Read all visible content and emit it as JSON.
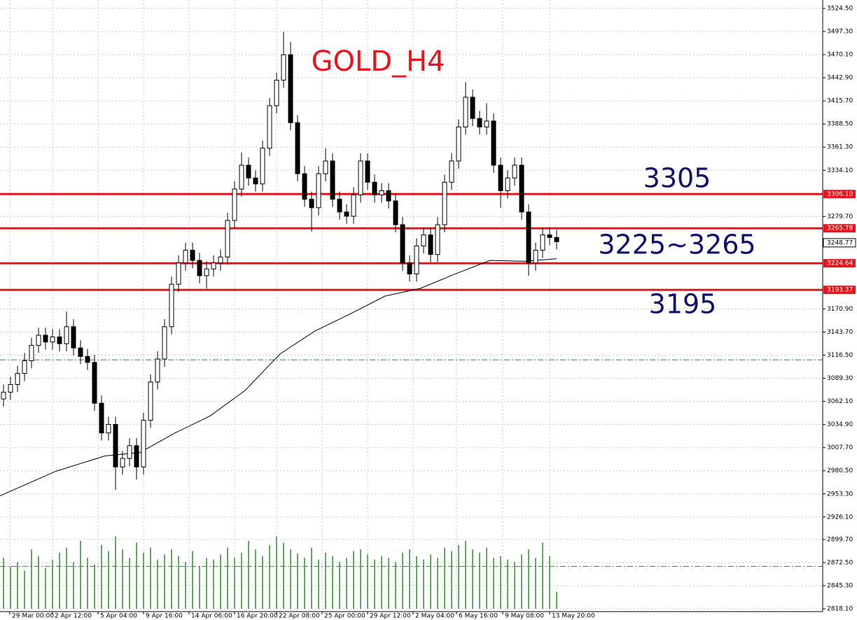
{
  "chart_data": {
    "type": "candlestick",
    "title": "GOLD_H4",
    "annotations": [
      "3305",
      "3225~3265",
      "3195"
    ],
    "open": [
      3065,
      3073,
      3082,
      3095,
      3110,
      3128,
      3140,
      3132,
      3138,
      3130,
      3150,
      3125,
      3115,
      3108,
      3060,
      3025,
      3035,
      2985,
      2995,
      3010,
      2985,
      3040,
      3085,
      3112,
      3150,
      3200,
      3225,
      3240,
      3228,
      3210,
      3218,
      3225,
      3232,
      3275,
      3312,
      3340,
      3325,
      3318,
      3360,
      3410,
      3440,
      3470,
      3390,
      3330,
      3300,
      3290,
      3330,
      3345,
      3300,
      3285,
      3280,
      3305,
      3345,
      3320,
      3305,
      3310,
      3298,
      3270,
      3225,
      3212,
      3245,
      3258,
      3235,
      3270,
      3320,
      3345,
      3385,
      3420,
      3395,
      3385,
      3392,
      3340,
      3310,
      3325,
      3340,
      3285,
      3225,
      3240,
      3258,
      3255
    ],
    "high": [
      3082,
      3091,
      3104,
      3119,
      3137,
      3149,
      3149,
      3147,
      3147,
      3168,
      3159,
      3134,
      3124,
      3117,
      3069,
      3044,
      3044,
      3004,
      3019,
      3019,
      3049,
      3094,
      3121,
      3159,
      3209,
      3234,
      3249,
      3249,
      3237,
      3227,
      3234,
      3241,
      3284,
      3321,
      3355,
      3349,
      3334,
      3369,
      3419,
      3449,
      3497,
      3485,
      3399,
      3339,
      3309,
      3339,
      3360,
      3354,
      3309,
      3294,
      3314,
      3354,
      3354,
      3329,
      3319,
      3319,
      3307,
      3279,
      3234,
      3254,
      3267,
      3267,
      3279,
      3329,
      3354,
      3394,
      3438,
      3429,
      3404,
      3413,
      3401,
      3349,
      3334,
      3349,
      3349,
      3294,
      3249,
      3267,
      3267,
      3264
    ],
    "low": [
      3056,
      3064,
      3073,
      3086,
      3101,
      3119,
      3123,
      3123,
      3121,
      3121,
      3116,
      3106,
      3099,
      3051,
      3016,
      3016,
      2958,
      2976,
      2986,
      2970,
      2976,
      3031,
      3076,
      3103,
      3141,
      3191,
      3216,
      3219,
      3201,
      3195,
      3209,
      3216,
      3223,
      3266,
      3303,
      3316,
      3309,
      3309,
      3351,
      3401,
      3431,
      3381,
      3321,
      3291,
      3262,
      3281,
      3321,
      3291,
      3276,
      3271,
      3271,
      3296,
      3311,
      3296,
      3296,
      3289,
      3261,
      3216,
      3203,
      3203,
      3236,
      3226,
      3226,
      3261,
      3311,
      3336,
      3376,
      3386,
      3376,
      3376,
      3331,
      3290,
      3301,
      3316,
      3276,
      3210,
      3216,
      3231,
      3246,
      3241
    ],
    "close": [
      3073,
      3082,
      3095,
      3110,
      3128,
      3140,
      3132,
      3138,
      3130,
      3150,
      3125,
      3115,
      3108,
      3060,
      3025,
      3035,
      2985,
      2995,
      3010,
      2985,
      3040,
      3085,
      3112,
      3150,
      3200,
      3225,
      3240,
      3228,
      3210,
      3218,
      3225,
      3232,
      3275,
      3312,
      3340,
      3325,
      3318,
      3360,
      3410,
      3440,
      3470,
      3390,
      3330,
      3300,
      3290,
      3330,
      3345,
      3300,
      3285,
      3280,
      3305,
      3345,
      3320,
      3305,
      3310,
      3298,
      3270,
      3225,
      3212,
      3245,
      3258,
      3235,
      3270,
      3320,
      3345,
      3385,
      3420,
      3395,
      3385,
      3392,
      3340,
      3310,
      3325,
      3340,
      3285,
      3225,
      3240,
      3258,
      3255,
      3250
    ],
    "volume": [
      60,
      50,
      55,
      45,
      70,
      62,
      48,
      58,
      66,
      72,
      55,
      80,
      60,
      52,
      75,
      68,
      85,
      70,
      60,
      78,
      66,
      72,
      58,
      64,
      70,
      62,
      55,
      68,
      50,
      60,
      58,
      64,
      72,
      60,
      66,
      80,
      70,
      62,
      75,
      85,
      78,
      70,
      65,
      60,
      72,
      58,
      66,
      62,
      55,
      60,
      68,
      70,
      64,
      58,
      62,
      60,
      55,
      66,
      70,
      62,
      58,
      64,
      60,
      72,
      68,
      75,
      80,
      70,
      66,
      72,
      60,
      62,
      58,
      55,
      64,
      70,
      60,
      78,
      62,
      20
    ],
    "ma": {
      "x": [
        -0.5,
        7.5,
        14.5,
        19.5,
        24.5,
        29.5,
        34.5,
        39.5,
        44.5,
        49.5,
        54.5,
        59.5,
        64.5,
        69.5,
        74.5,
        79
      ],
      "values": [
        2951,
        2980,
        2998,
        3002,
        3025,
        3045,
        3075,
        3118,
        3145,
        3165,
        3186,
        3195,
        3212,
        3228,
        3227,
        3230
      ]
    },
    "levels": [
      {
        "value": 3306.1,
        "label": "3306.10"
      },
      {
        "value": 3265.78,
        "label": "3265.78"
      },
      {
        "value": 3224.64,
        "label": "3224.64"
      },
      {
        "value": 3193.37,
        "label": "3193.37"
      }
    ],
    "current_price": {
      "value": 3248.77,
      "label": "3248.77"
    },
    "dashed_levels": [
      3111,
      2868
    ],
    "ylim": [
      2818.1,
      3524.5
    ],
    "yticks": [
      {
        "value": 3524.5,
        "label": "3524.50"
      },
      {
        "value": 3497.3,
        "label": "3497.30"
      },
      {
        "value": 3470.1,
        "label": "3470.10"
      },
      {
        "value": 3442.9,
        "label": "3442.90"
      },
      {
        "value": 3415.7,
        "label": "3415.70"
      },
      {
        "value": 3388.5,
        "label": "3388.50"
      },
      {
        "value": 3361.3,
        "label": "3361.30"
      },
      {
        "value": 3334.1,
        "label": "3334.10"
      },
      {
        "value": 3279.7,
        "label": "3279.70"
      },
      {
        "value": 3170.9,
        "label": "3170.90"
      },
      {
        "value": 3143.7,
        "label": "3143.70"
      },
      {
        "value": 3116.5,
        "label": "3116.50"
      },
      {
        "value": 3089.3,
        "label": "3089.30"
      },
      {
        "value": 3062.1,
        "label": "3062.10"
      },
      {
        "value": 3034.9,
        "label": "3034.90"
      },
      {
        "value": 3007.7,
        "label": "3007.70"
      },
      {
        "value": 2980.5,
        "label": "2980.50"
      },
      {
        "value": 2953.3,
        "label": "2953.30"
      },
      {
        "value": 2926.1,
        "label": "2926.10"
      },
      {
        "value": 2899.7,
        "label": "2899.70"
      },
      {
        "value": 2872.5,
        "label": "2872.50"
      },
      {
        "value": 2845.3,
        "label": "2845.30"
      },
      {
        "value": 2818.1,
        "label": "2818.10"
      }
    ],
    "xlim": [
      -0.5,
      117
    ],
    "xticks": [
      {
        "value": 0.9,
        "label": "29 Mar 00:00"
      },
      {
        "value": 7,
        "label": "2 Apr 12:00"
      },
      {
        "value": 13.5,
        "label": "5 Apr 04:00"
      },
      {
        "value": 20,
        "label": "9 Apr 16:00"
      },
      {
        "value": 26.5,
        "label": "14 Apr 06:00"
      },
      {
        "value": 33,
        "label": "16 Apr 20:00"
      },
      {
        "value": 39,
        "label": "22 Apr 08:00"
      },
      {
        "value": 45.5,
        "label": "25 Apr 00:00"
      },
      {
        "value": 52,
        "label": "29 Apr 12:00"
      },
      {
        "value": 58.5,
        "label": "2 May 04:00"
      },
      {
        "value": 64.7,
        "label": "6 May 16:00"
      },
      {
        "value": 71.3,
        "label": "9 May 08:00"
      },
      {
        "value": 78,
        "label": "13 May 20:00"
      }
    ],
    "grid": true
  }
}
